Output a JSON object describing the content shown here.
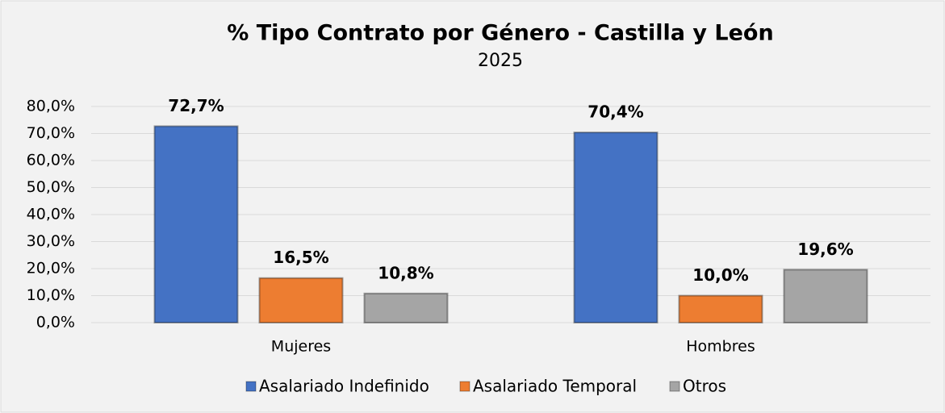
{
  "chart_data": {
    "type": "bar",
    "title": "% Tipo Contrato por Género - Castilla y León",
    "subtitle": "2025",
    "categories": [
      "Mujeres",
      "Hombres"
    ],
    "series": [
      {
        "name": "Asalariado Indefinido",
        "color": "#4472c4",
        "values": [
          72.7,
          70.4
        ],
        "value_labels": [
          "72,7%",
          "70,4%"
        ]
      },
      {
        "name": "Asalariado Temporal",
        "color": "#ed7d31",
        "values": [
          16.5,
          10.0
        ],
        "value_labels": [
          "16,5%",
          "10,0%"
        ]
      },
      {
        "name": "Otros",
        "color": "#a5a5a5",
        "values": [
          10.8,
          19.6
        ],
        "value_labels": [
          "10,8%",
          "19,6%"
        ]
      }
    ],
    "ylim": [
      0,
      80
    ],
    "yticks": [
      {
        "value": 0,
        "label": "0,0%"
      },
      {
        "value": 10,
        "label": "10,0%"
      },
      {
        "value": 20,
        "label": "20,0%"
      },
      {
        "value": 30,
        "label": "30,0%"
      },
      {
        "value": 40,
        "label": "40,0%"
      },
      {
        "value": 50,
        "label": "50,0%"
      },
      {
        "value": 60,
        "label": "60,0%"
      },
      {
        "value": 70,
        "label": "70,0%"
      },
      {
        "value": 80,
        "label": "80,0%"
      }
    ],
    "grid": true,
    "legend": "bottom"
  }
}
